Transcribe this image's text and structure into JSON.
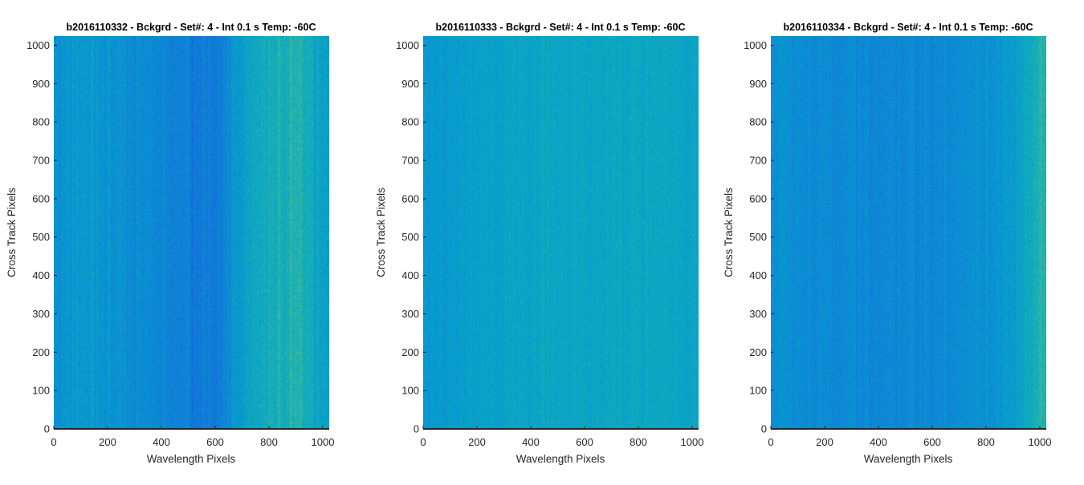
{
  "chart_data": [
    {
      "type": "heatmap",
      "title": "b2016110332 - Bckgrd - Set#: 4 - Int 0.1 s Temp: -60C",
      "xlabel": "Wavelength Pixels",
      "ylabel": "Cross Track Pixels",
      "xlim": [
        0,
        1024
      ],
      "ylim": [
        0,
        1024
      ],
      "xticks": [
        0,
        200,
        400,
        600,
        800,
        1000
      ],
      "yticks": [
        0,
        100,
        200,
        300,
        400,
        500,
        600,
        700,
        800,
        900,
        1000
      ],
      "colormap": "parula",
      "column_profile": {
        "x": [
          0,
          100,
          200,
          300,
          400,
          500,
          600,
          650,
          700,
          800,
          900,
          1000,
          1024
        ],
        "level": [
          0.4,
          0.44,
          0.42,
          0.38,
          0.34,
          0.3,
          0.28,
          0.38,
          0.48,
          0.55,
          0.6,
          0.5,
          0.48
        ]
      },
      "noise": 0.13
    },
    {
      "type": "heatmap",
      "title": "b2016110333 - Bckgrd - Set#: 4 - Int 0.1 s Temp: -60C",
      "xlabel": "Wavelength Pixels",
      "ylabel": "Cross Track Pixels",
      "xlim": [
        0,
        1024
      ],
      "ylim": [
        0,
        1024
      ],
      "xticks": [
        0,
        200,
        400,
        600,
        800,
        1000
      ],
      "yticks": [
        0,
        100,
        200,
        300,
        400,
        500,
        600,
        700,
        800,
        900,
        1000
      ],
      "colormap": "parula",
      "column_profile": {
        "x": [
          0,
          50,
          200,
          400,
          600,
          800,
          1000,
          1024
        ],
        "level": [
          0.42,
          0.44,
          0.48,
          0.5,
          0.5,
          0.51,
          0.5,
          0.5
        ]
      },
      "noise": 0.08
    },
    {
      "type": "heatmap",
      "title": "b2016110334 - Bckgrd - Set#: 4 - Int 0.1 s Temp: -60C",
      "xlabel": "Wavelength Pixels",
      "ylabel": "Cross Track Pixels",
      "xlim": [
        0,
        1024
      ],
      "ylim": [
        0,
        1024
      ],
      "xticks": [
        0,
        200,
        400,
        600,
        800,
        1000
      ],
      "yticks": [
        0,
        100,
        200,
        300,
        400,
        500,
        600,
        700,
        800,
        900,
        1000
      ],
      "colormap": "parula",
      "column_profile": {
        "x": [
          0,
          200,
          400,
          600,
          800,
          900,
          950,
          1000,
          1024
        ],
        "level": [
          0.4,
          0.36,
          0.36,
          0.36,
          0.4,
          0.44,
          0.52,
          0.58,
          0.6
        ]
      },
      "noise": 0.11
    }
  ]
}
